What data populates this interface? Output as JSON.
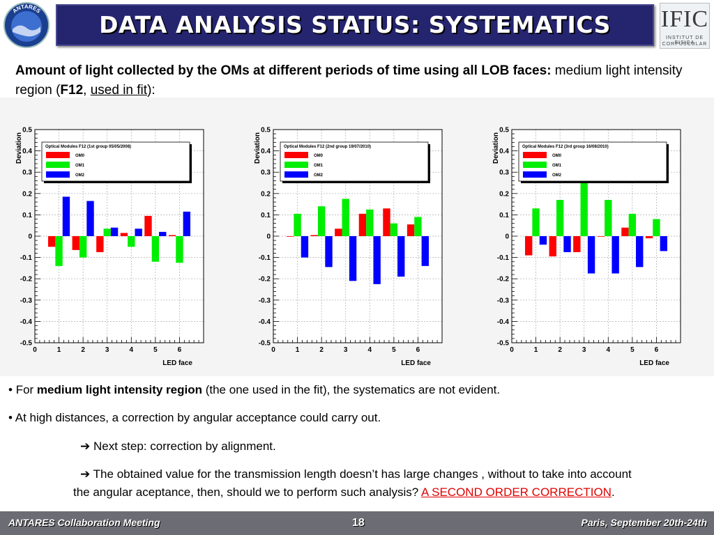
{
  "header": {
    "logo_text": "ANTARES",
    "title": "DATA ANALYSIS STATUS: SYSTEMATICS",
    "right_logo_big": "IFIC",
    "right_logo_line1": "INSTITUT DE FISICA",
    "right_logo_line2": "CORPUSCULAR"
  },
  "intro": {
    "bold": "Amount of light collected by the OMs at different periods of time using all LOB faces:",
    "text1": " medium light intensity region (",
    "code": "F12",
    "sep": ", ",
    "link": "used in fit",
    "end": "):"
  },
  "colors": {
    "om0": "#ff0000",
    "om1": "#00ee00",
    "om2": "#0000ff",
    "title_bg": "#25246f",
    "footer_bg": "#6c6c74",
    "link_red": "#e00000"
  },
  "chart_data": [
    {
      "type": "bar",
      "legend_title": "Optical Modules F12 (1st group 05/05/2008)",
      "xlabel": "LED face",
      "ylabel": "Deviation",
      "xlim": [
        0,
        7
      ],
      "ylim": [
        -0.5,
        0.5
      ],
      "xticks": [
        "0",
        "1",
        "2",
        "3",
        "4",
        "5",
        "6"
      ],
      "yticks": [
        "0.5",
        "0.4",
        "0.3",
        "0.2",
        "0.1",
        "0",
        "-0.1",
        "-0.2",
        "-0.3",
        "-0.4",
        "-0.5"
      ],
      "categories": [
        1,
        2,
        3,
        4,
        5,
        6
      ],
      "series": [
        {
          "name": "OM0",
          "color": "#ff0000",
          "values": [
            -0.05,
            -0.065,
            -0.075,
            0.015,
            0.095,
            0.005
          ]
        },
        {
          "name": "OM1",
          "color": "#00ee00",
          "values": [
            -0.14,
            -0.1,
            0.035,
            -0.05,
            -0.12,
            -0.125
          ]
        },
        {
          "name": "OM2",
          "color": "#0000ff",
          "values": [
            0.185,
            0.165,
            0.04,
            0.035,
            0.02,
            0.115
          ]
        }
      ]
    },
    {
      "type": "bar",
      "legend_title": "Optical Modules F12 (2nd group 19/07/2010)",
      "xlabel": "LED face",
      "ylabel": "Deviation",
      "xlim": [
        0,
        7
      ],
      "ylim": [
        -0.5,
        0.5
      ],
      "xticks": [
        "0",
        "1",
        "2",
        "3",
        "4",
        "5",
        "6"
      ],
      "yticks": [
        "0.5",
        "0.4",
        "0.3",
        "0.2",
        "0.1",
        "0",
        "-0.1",
        "-0.2",
        "-0.3",
        "-0.4",
        "-0.5"
      ],
      "categories": [
        1,
        2,
        3,
        4,
        5,
        6
      ],
      "series": [
        {
          "name": "OM0",
          "color": "#ff0000",
          "values": [
            0.0,
            0.005,
            0.035,
            0.105,
            0.13,
            0.055
          ]
        },
        {
          "name": "OM1",
          "color": "#00ee00",
          "values": [
            0.105,
            0.14,
            0.175,
            0.125,
            0.06,
            0.09
          ]
        },
        {
          "name": "OM2",
          "color": "#0000ff",
          "values": [
            -0.1,
            -0.145,
            -0.21,
            -0.225,
            -0.19,
            -0.14
          ]
        }
      ]
    },
    {
      "type": "bar",
      "legend_title": "Optical Modules F12 (3rd group 16/08/2010)",
      "xlabel": "LED face",
      "ylabel": "Deviation",
      "xlim": [
        0,
        7
      ],
      "ylim": [
        -0.5,
        0.5
      ],
      "xticks": [
        "0",
        "1",
        "2",
        "3",
        "4",
        "5",
        "6"
      ],
      "yticks": [
        "0.5",
        "0.4",
        "0.3",
        "0.2",
        "0.1",
        "0",
        "-0.1",
        "-0.2",
        "-0.3",
        "-0.4",
        "-0.5"
      ],
      "categories": [
        1,
        2,
        3,
        4,
        5,
        6
      ],
      "series": [
        {
          "name": "OM0",
          "color": "#ff0000",
          "values": [
            -0.09,
            -0.095,
            -0.075,
            0.0,
            0.04,
            -0.01
          ]
        },
        {
          "name": "OM1",
          "color": "#00ee00",
          "values": [
            0.13,
            0.17,
            0.255,
            0.17,
            0.105,
            0.08
          ]
        },
        {
          "name": "OM2",
          "color": "#0000ff",
          "values": [
            -0.04,
            -0.075,
            -0.175,
            -0.175,
            -0.145,
            -0.07
          ]
        }
      ]
    }
  ],
  "bullets": {
    "b1_pre": "For ",
    "b1_bold": "medium light intensity region",
    "b1_post": " (the one used in the fit), the systematics are not evident.",
    "b2": "At high distances, a correction by angular acceptance could carry out.",
    "s1": "Next step: correction by alignment.",
    "s2_a": "The obtained value for the transmission length doesn’t has large changes , without to take into account",
    "s2_b": "the angular aceptance, then, should we to perform such analysis? ",
    "s2_link": "A SECOND ORDER CORRECTION",
    "s2_end": "."
  },
  "footer": {
    "left": "ANTARES Collaboration Meeting",
    "page": "18",
    "right": "Paris, September 20th-24th"
  }
}
